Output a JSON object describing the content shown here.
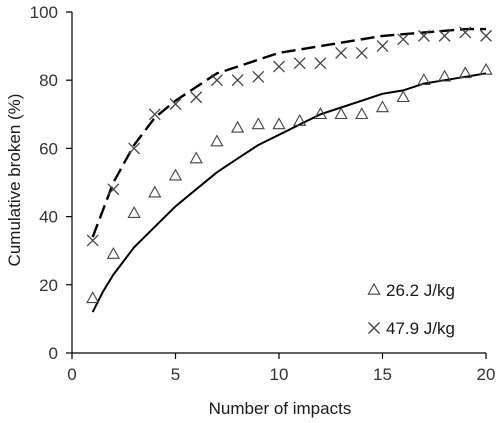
{
  "chart_data": {
    "type": "scatter",
    "title": "",
    "xlabel": "Number of impacts",
    "ylabel": "Cumulative broken (%)",
    "xlim": [
      0,
      20
    ],
    "ylim": [
      0,
      100
    ],
    "xticks": [
      "0",
      "5",
      "10",
      "15",
      "20"
    ],
    "yticks": [
      "0",
      "20",
      "40",
      "60",
      "80",
      "100"
    ],
    "grid": false,
    "legend_position": "bottom-right",
    "series": [
      {
        "name": "26.2 J/kg",
        "marker": "triangle",
        "fit_line": "solid",
        "x": [
          1,
          2,
          3,
          4,
          5,
          6,
          7,
          8,
          9,
          10,
          11,
          12,
          13,
          14,
          15,
          16,
          17,
          18,
          19,
          20
        ],
        "y": [
          16,
          29,
          41,
          47,
          52,
          57,
          62,
          66,
          67,
          67,
          68,
          70,
          70,
          70,
          72,
          75,
          80,
          81,
          82,
          83
        ],
        "fit_x": [
          1,
          1.5,
          2,
          3,
          4,
          5,
          6,
          7,
          8,
          9,
          10,
          11,
          12,
          13,
          14,
          15,
          16,
          17,
          18,
          19,
          20
        ],
        "fit_y": [
          12,
          18,
          23,
          31,
          37,
          43,
          48,
          53,
          57,
          61,
          64,
          67,
          70,
          72,
          74,
          76,
          77,
          79,
          80,
          81,
          82
        ]
      },
      {
        "name": "47.9 J/kg",
        "marker": "cross",
        "fit_line": "dashed",
        "x": [
          1,
          2,
          3,
          4,
          5,
          6,
          7,
          8,
          9,
          10,
          11,
          12,
          13,
          14,
          15,
          16,
          17,
          18,
          19,
          20
        ],
        "y": [
          33,
          48,
          60,
          70,
          73,
          75,
          80,
          80,
          81,
          84,
          85,
          85,
          88,
          88,
          90,
          92,
          93,
          93,
          94,
          93
        ],
        "fit_x": [
          1,
          2,
          3,
          4,
          5,
          6,
          7,
          8,
          9,
          10,
          11,
          12,
          13,
          14,
          15,
          16,
          17,
          18,
          19,
          20
        ],
        "fit_y": [
          34,
          50,
          61,
          69,
          74,
          78,
          82,
          84,
          86,
          88,
          89,
          90,
          91,
          92,
          93,
          93.5,
          94,
          94.5,
          95,
          95
        ]
      }
    ]
  }
}
